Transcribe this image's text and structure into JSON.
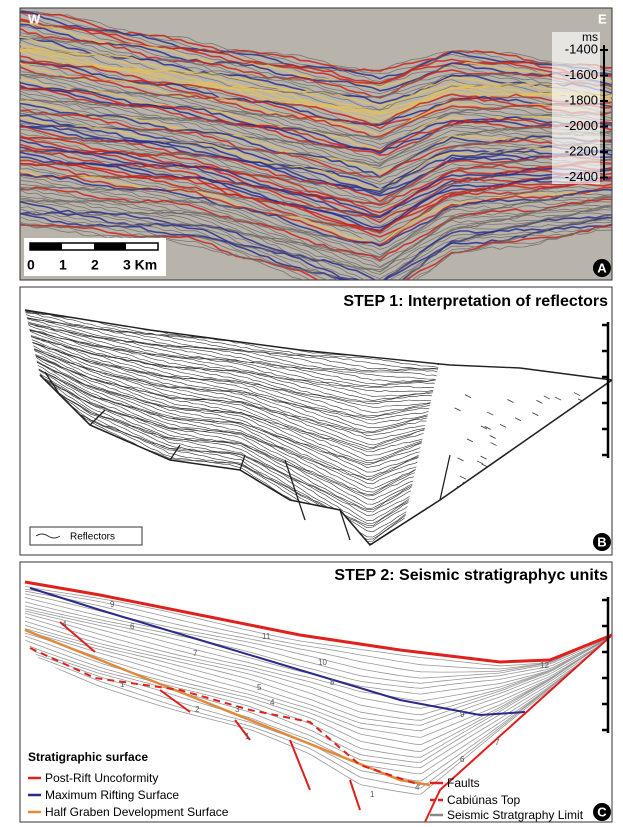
{
  "panel_a": {
    "west": "W",
    "east": "E",
    "unit": "ms",
    "depths": [
      "-1400",
      "-1600",
      "-1800",
      "-2000",
      "-2200",
      "-2400"
    ],
    "scale": [
      "0",
      "1",
      "2",
      "3 Km"
    ],
    "label": "A"
  },
  "panel_b": {
    "title": "STEP 1: Interpretation of reflectors",
    "legend": "Reflectors",
    "label": "B"
  },
  "panel_c": {
    "title": "STEP 2: Seismic stratigraphyc units",
    "units": [
      "9",
      "4",
      "6",
      "7",
      "11",
      "10",
      "8",
      "5",
      "4",
      "3",
      "2",
      "1",
      "1",
      "9",
      "7",
      "6",
      "4",
      "12",
      "1"
    ],
    "legend_title": "Stratigraphic surface",
    "legend": [
      "Post-Rift Uncoformity",
      "Maximum Rifting Surface",
      "Half Graben Development Surface",
      "Faults",
      "Cabiúnas Top",
      "Seismic Stratgraphy Limit"
    ],
    "label": "C"
  }
}
